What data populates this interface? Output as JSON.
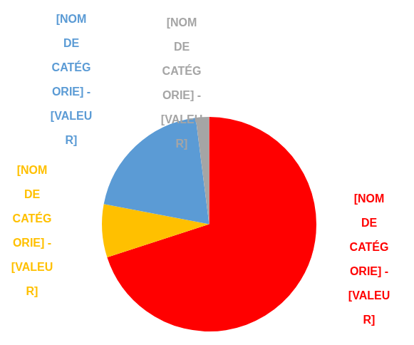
{
  "chart_data": {
    "type": "pie",
    "categories": [
      "[NOM DE CATÉGORIE] - [VALEUR]",
      "[NOM DE CATÉGORIE] - [VALEUR]",
      "[NOM DE CATÉGORIE] - [VALEUR]",
      "[NOM DE CATÉGORIE] - [VALEUR]"
    ],
    "values": [
      70,
      8,
      20,
      2
    ],
    "colors": [
      "#ff0000",
      "#ffc000",
      "#5b9bd5",
      "#a5a5a5"
    ]
  }
}
